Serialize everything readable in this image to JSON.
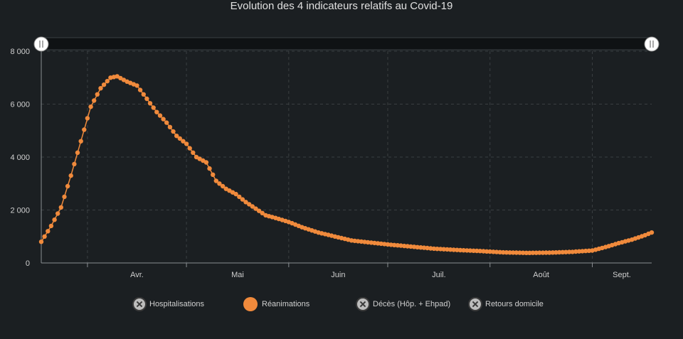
{
  "chart_data": {
    "type": "line",
    "title": "Evolution des 4 indicateurs relatifs au Covid-19",
    "xlabel": "",
    "ylabel": "",
    "ylim": [
      0,
      8000
    ],
    "yticks": [
      "0",
      "2 000",
      "4 000",
      "6 000",
      "8 000"
    ],
    "ytick_values": [
      0,
      2000,
      4000,
      6000,
      8000
    ],
    "x_date_range": [
      "2020-03-18",
      "2020-09-19"
    ],
    "months": [
      {
        "label": "Avr.",
        "start": "2020-04-01"
      },
      {
        "label": "Mai",
        "start": "2020-05-01"
      },
      {
        "label": "Juin",
        "start": "2020-06-01"
      },
      {
        "label": "Juil.",
        "start": "2020-07-01"
      },
      {
        "label": "Août",
        "start": "2020-08-01"
      },
      {
        "label": "Sept.",
        "start": "2020-09-01"
      }
    ],
    "grid": true,
    "legend_placement": "bottom",
    "series": [
      {
        "name": "Réanimations",
        "color": "#f08a3c",
        "points": [
          [
            "2020-03-18",
            800
          ],
          [
            "2020-03-21",
            1400
          ],
          [
            "2020-03-24",
            2100
          ],
          [
            "2020-03-27",
            3300
          ],
          [
            "2020-03-30",
            4600
          ],
          [
            "2020-04-02",
            5900
          ],
          [
            "2020-04-05",
            6600
          ],
          [
            "2020-04-08",
            7000
          ],
          [
            "2020-04-10",
            7050
          ],
          [
            "2020-04-13",
            6850
          ],
          [
            "2020-04-16",
            6700
          ],
          [
            "2020-04-19",
            6200
          ],
          [
            "2020-04-22",
            5700
          ],
          [
            "2020-04-25",
            5300
          ],
          [
            "2020-04-28",
            4800
          ],
          [
            "2020-05-01",
            4500
          ],
          [
            "2020-05-04",
            4000
          ],
          [
            "2020-05-07",
            3800
          ],
          [
            "2020-05-10",
            3100
          ],
          [
            "2020-05-13",
            2800
          ],
          [
            "2020-05-16",
            2600
          ],
          [
            "2020-05-19",
            2300
          ],
          [
            "2020-05-22",
            2050
          ],
          [
            "2020-05-25",
            1800
          ],
          [
            "2020-05-28",
            1700
          ],
          [
            "2020-06-01",
            1550
          ],
          [
            "2020-06-05",
            1350
          ],
          [
            "2020-06-10",
            1150
          ],
          [
            "2020-06-15",
            1000
          ],
          [
            "2020-06-20",
            850
          ],
          [
            "2020-06-25",
            780
          ],
          [
            "2020-07-01",
            700
          ],
          [
            "2020-07-08",
            620
          ],
          [
            "2020-07-15",
            540
          ],
          [
            "2020-07-22",
            490
          ],
          [
            "2020-07-29",
            450
          ],
          [
            "2020-08-05",
            400
          ],
          [
            "2020-08-12",
            380
          ],
          [
            "2020-08-19",
            390
          ],
          [
            "2020-08-26",
            420
          ],
          [
            "2020-09-01",
            470
          ],
          [
            "2020-09-05",
            600
          ],
          [
            "2020-09-09",
            750
          ],
          [
            "2020-09-13",
            880
          ],
          [
            "2020-09-17",
            1050
          ],
          [
            "2020-09-19",
            1150
          ]
        ]
      }
    ]
  },
  "legend": [
    {
      "label": "Hospitalisations",
      "active": false
    },
    {
      "label": "Réanimations",
      "active": true
    },
    {
      "label": "Décès (Hôp. + Ehpad)",
      "active": false
    },
    {
      "label": "Retours domicile",
      "active": false
    }
  ]
}
